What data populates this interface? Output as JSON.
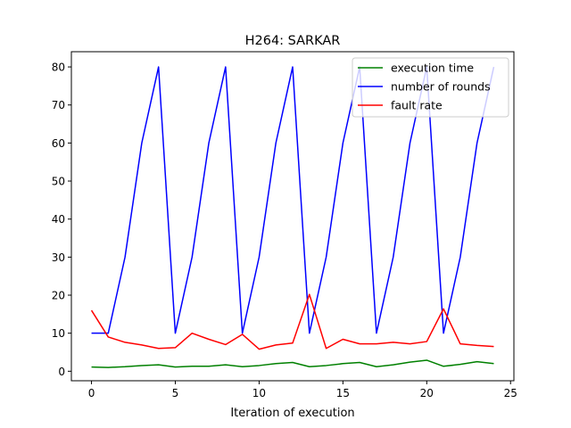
{
  "chart_data": {
    "type": "line",
    "title": "H264: SARKAR",
    "xlabel": "Iteration of execution",
    "ylabel": "",
    "xlim": [
      -1.2,
      25.2
    ],
    "ylim": [
      -2.5,
      84.0
    ],
    "xticks": [
      0,
      5,
      10,
      15,
      20,
      25
    ],
    "yticks": [
      0,
      10,
      20,
      30,
      40,
      50,
      60,
      70,
      80
    ],
    "grid": false,
    "legend": "top-right",
    "x": [
      0,
      1,
      2,
      3,
      4,
      5,
      6,
      7,
      8,
      9,
      10,
      11,
      12,
      13,
      14,
      15,
      16,
      17,
      18,
      19,
      20,
      21,
      22,
      23,
      24
    ],
    "series": [
      {
        "name": "execution time",
        "color": "#008000",
        "values": [
          1.1,
          1.0,
          1.2,
          1.5,
          1.7,
          1.1,
          1.3,
          1.3,
          1.7,
          1.2,
          1.5,
          2.0,
          2.3,
          1.2,
          1.5,
          2.0,
          2.3,
          1.2,
          1.7,
          2.4,
          2.9,
          1.3,
          1.8,
          2.5,
          2.0
        ]
      },
      {
        "name": "number of rounds",
        "color": "#0000ff",
        "values": [
          10,
          10,
          30,
          60,
          80,
          10,
          30,
          60,
          80,
          10,
          30,
          60,
          80,
          10,
          30,
          60,
          80,
          10,
          30,
          60,
          80,
          10,
          30,
          60,
          80
        ]
      },
      {
        "name": "fault rate",
        "color": "#ff0000",
        "values": [
          16.0,
          9.0,
          7.6,
          6.9,
          6.0,
          6.2,
          10.0,
          8.4,
          7.0,
          9.7,
          5.8,
          6.9,
          7.4,
          20.2,
          6.0,
          8.4,
          7.2,
          7.2,
          7.6,
          7.2,
          7.8,
          16.4,
          7.2,
          6.8,
          6.5
        ]
      }
    ]
  }
}
